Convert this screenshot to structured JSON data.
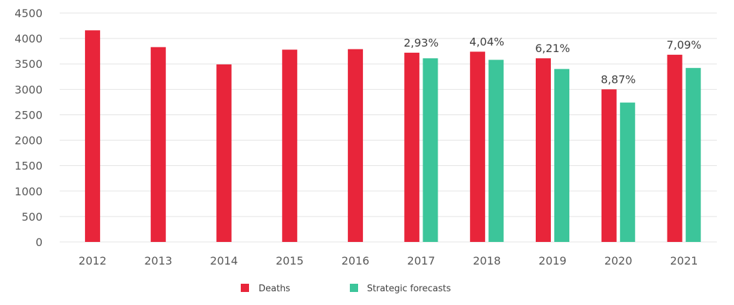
{
  "chart_data": {
    "type": "bar",
    "categories": [
      "2012",
      "2013",
      "2014",
      "2015",
      "2016",
      "2017",
      "2018",
      "2019",
      "2020",
      "2021"
    ],
    "series": [
      {
        "name": "Deaths",
        "color": "#e8253a",
        "values": [
          4160,
          3830,
          3490,
          3780,
          3790,
          3720,
          3740,
          3610,
          3000,
          3680
        ]
      },
      {
        "name": "Strategic forecasts",
        "color": "#3cc59a",
        "values": [
          null,
          null,
          null,
          null,
          null,
          3610,
          3580,
          3400,
          2740,
          3420
        ]
      }
    ],
    "data_labels": [
      "",
      "",
      "",
      "",
      "",
      "2,93%",
      "4,04%",
      "6,21%",
      "8,87%",
      "7,09%"
    ],
    "yticks": [
      "0",
      "500",
      "1000",
      "1500",
      "2000",
      "2500",
      "3000",
      "3500",
      "4000",
      "4500"
    ],
    "ylim": [
      0,
      4500
    ],
    "grid": true,
    "legend_position": "bottom"
  }
}
